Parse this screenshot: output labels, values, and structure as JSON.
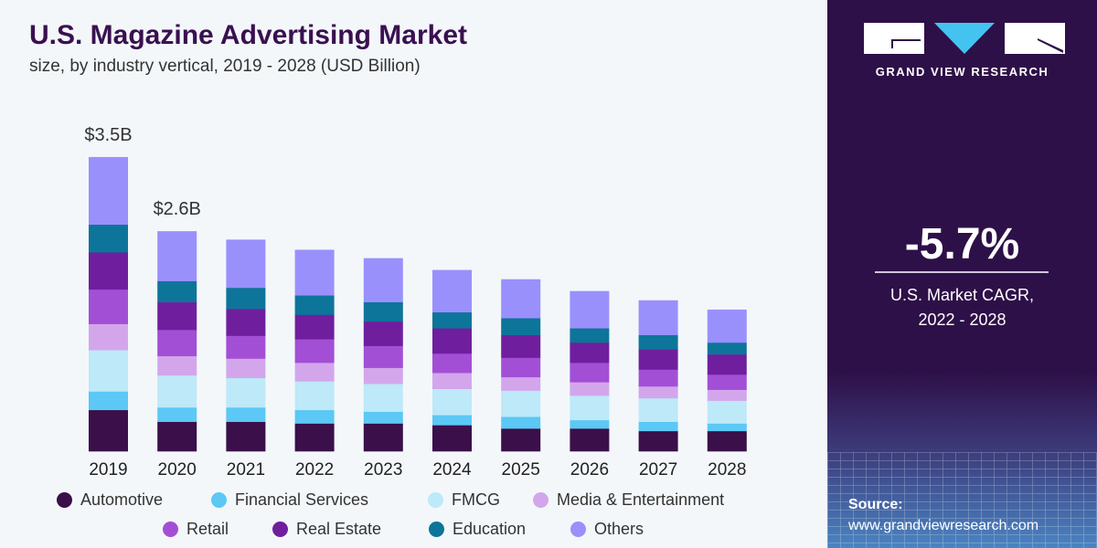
{
  "header": {
    "title": "U.S. Magazine Advertising Market",
    "subtitle": "size, by industry vertical, 2019 - 2028 (USD Billion)"
  },
  "brand": {
    "name": "GRAND VIEW RESEARCH",
    "logo_colors": [
      "#ffffff",
      "#45c3f0"
    ]
  },
  "kpi": {
    "value": "-5.7%",
    "label_line1": "U.S. Market CAGR,",
    "label_line2": "2022 - 2028"
  },
  "source": {
    "label": "Source:",
    "url": "www.grandviewresearch.com"
  },
  "colors": {
    "background": "#f3f7fa",
    "panel": "#2e1048",
    "title": "#3a1050"
  },
  "chart_data": {
    "type": "bar",
    "stacked": true,
    "title": "U.S. Magazine Advertising Market",
    "subtitle": "size, by industry vertical, 2019 - 2028 (USD Billion)",
    "categories": [
      "2019",
      "2020",
      "2021",
      "2022",
      "2023",
      "2024",
      "2025",
      "2026",
      "2027",
      "2028"
    ],
    "series": [
      {
        "name": "Automotive",
        "color": "#3a0f4a",
        "values": [
          0.49,
          0.35,
          0.35,
          0.33,
          0.33,
          0.31,
          0.27,
          0.27,
          0.24,
          0.24
        ]
      },
      {
        "name": "Financial Services",
        "color": "#5bc8f5",
        "values": [
          0.22,
          0.17,
          0.17,
          0.16,
          0.14,
          0.12,
          0.14,
          0.1,
          0.11,
          0.09
        ]
      },
      {
        "name": "FMCG",
        "color": "#bde9f8",
        "values": [
          0.49,
          0.38,
          0.35,
          0.34,
          0.33,
          0.31,
          0.31,
          0.29,
          0.28,
          0.27
        ]
      },
      {
        "name": "Media & Entertainment",
        "color": "#d3a6ec",
        "values": [
          0.31,
          0.23,
          0.23,
          0.22,
          0.19,
          0.19,
          0.16,
          0.16,
          0.14,
          0.13
        ]
      },
      {
        "name": "Retail",
        "color": "#a24fd6",
        "values": [
          0.41,
          0.31,
          0.27,
          0.28,
          0.26,
          0.23,
          0.23,
          0.23,
          0.2,
          0.18
        ]
      },
      {
        "name": "Real Estate",
        "color": "#6f1f9e",
        "values": [
          0.44,
          0.33,
          0.32,
          0.29,
          0.29,
          0.3,
          0.27,
          0.24,
          0.24,
          0.24
        ]
      },
      {
        "name": "Education",
        "color": "#0d7599",
        "values": [
          0.33,
          0.25,
          0.25,
          0.23,
          0.23,
          0.19,
          0.2,
          0.17,
          0.17,
          0.14
        ]
      },
      {
        "name": "Others",
        "color": "#9a90fc",
        "values": [
          0.8,
          0.59,
          0.57,
          0.54,
          0.52,
          0.5,
          0.46,
          0.44,
          0.41,
          0.39
        ]
      }
    ],
    "data_labels": [
      {
        "category": "2019",
        "text": "$3.5B"
      },
      {
        "category": "2020",
        "text": "$2.6B"
      }
    ],
    "ylim": [
      0,
      3.5
    ],
    "grid": false,
    "y_axis_visible": false,
    "legend_placement": "bottom"
  }
}
